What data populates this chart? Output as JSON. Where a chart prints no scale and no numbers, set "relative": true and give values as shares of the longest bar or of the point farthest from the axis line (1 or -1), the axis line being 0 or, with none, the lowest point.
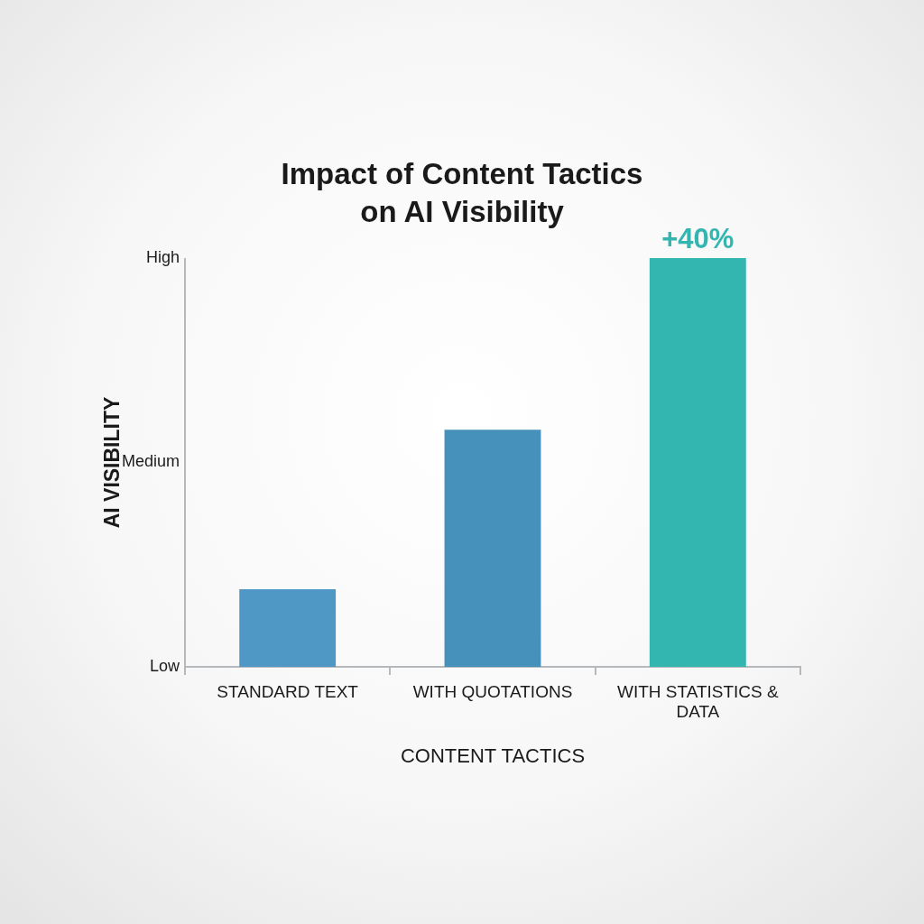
{
  "chart_data": {
    "type": "bar",
    "title": "Impact of Content Tactics on AI Visibility",
    "xlabel": "CONTENT TACTICS",
    "ylabel": "AI VISIBILITY",
    "categories": [
      "STANDARD TEXT",
      "WITH QUOTATIONS",
      "WITH STATISTICS & DATA"
    ],
    "values": [
      0.19,
      0.58,
      1
    ],
    "colors": [
      "#4f97c4",
      "#4690bc",
      "#33b5b0"
    ],
    "relative": true,
    "annotations": [
      "Low",
      "Medium",
      "High",
      {
        "text": "+40%",
        "x": "WITH STATISTICS & DATA",
        "y": 1
      }
    ],
    "legend": false
  }
}
